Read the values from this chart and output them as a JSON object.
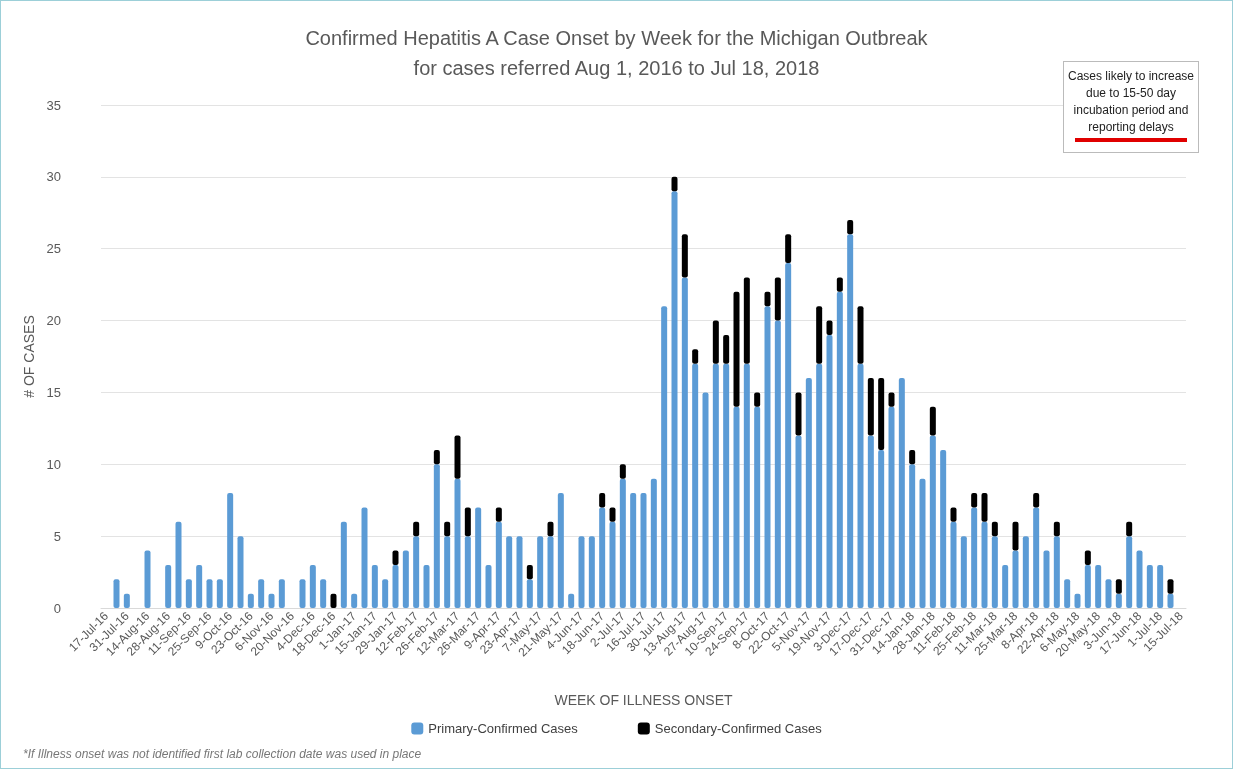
{
  "chart_data": {
    "type": "bar",
    "title": "Confirmed Hepatitis A Case Onset by Week for the Michigan Outbreak",
    "subtitle": "for cases referred Aug 1, 2016 to Jul 18, 2018",
    "xlabel": "WEEK OF ILLNESS ONSET",
    "ylabel": "# OF CASES",
    "annotations": [
      "Cases likely to increase due to 15-50 day incubation period and reporting delays",
      "*If Illness onset was not identified first lab collection date was used in place"
    ],
    "categories": [
      "17-Jul-16",
      null,
      "31-Jul-16",
      null,
      "14-Aug-16",
      null,
      "28-Aug-16",
      null,
      "11-Sep-16",
      null,
      "25-Sep-16",
      null,
      "9-Oct-16",
      null,
      "23-Oct-16",
      null,
      "6-Nov-16",
      null,
      "20-Nov-16",
      null,
      "4-Dec-16",
      null,
      "18-Dec-16",
      null,
      "1-Jan-17",
      null,
      "15-Jan-17",
      null,
      "29-Jan-17",
      null,
      "12-Feb-17",
      null,
      "26-Feb-17",
      null,
      "12-Mar-17",
      null,
      "26-Mar-17",
      null,
      "9-Apr-17",
      null,
      "23-Apr-17",
      null,
      "7-May-17",
      null,
      "21-May-17",
      null,
      "4-Jun-17",
      null,
      "18-Jun-17",
      null,
      "2-Jul-17",
      null,
      "16-Jul-17",
      null,
      "30-Jul-17",
      null,
      "13-Aug-17",
      null,
      "27-Aug-17",
      null,
      "10-Sep-17",
      null,
      "24-Sep-17",
      null,
      "8-Oct-17",
      null,
      "22-Oct-17",
      null,
      "5-Nov-17",
      null,
      "19-Nov-17",
      null,
      "3-Dec-17",
      null,
      "17-Dec-17",
      null,
      "31-Dec-17",
      null,
      "14-Jan-18",
      null,
      "28-Jan-18",
      null,
      "11-Feb-18",
      null,
      "25-Feb-18",
      null,
      "11-Mar-18",
      null,
      "25-Mar-18",
      null,
      "8-Apr-18",
      null,
      "22-Apr-18",
      null,
      "6-May-18",
      null,
      "20-May-18",
      null,
      "3-Jun-18",
      null,
      "17-Jun-18",
      null,
      "1-Jul-18",
      null,
      "15-Jul-18"
    ],
    "series": [
      {
        "name": "Primary-Confirmed Cases",
        "color": "#5b9bd5",
        "values": [
          0,
          2,
          1,
          0,
          4,
          0,
          3,
          6,
          2,
          3,
          2,
          2,
          8,
          5,
          1,
          2,
          1,
          2,
          0,
          2,
          3,
          2,
          0,
          6,
          1,
          7,
          3,
          2,
          3,
          4,
          5,
          3,
          10,
          5,
          9,
          5,
          7,
          3,
          6,
          5,
          5,
          2,
          5,
          5,
          8,
          1,
          5,
          5,
          7,
          6,
          9,
          8,
          8,
          9,
          21,
          29,
          23,
          17,
          15,
          17,
          17,
          14,
          17,
          14,
          21,
          20,
          24,
          12,
          16,
          17,
          19,
          22,
          26,
          17,
          12,
          11,
          14,
          16,
          10,
          9,
          12,
          11,
          6,
          5,
          7,
          6,
          5,
          3,
          4,
          5,
          7,
          4,
          5,
          2,
          1,
          3,
          3,
          2,
          1,
          5,
          4,
          3,
          3,
          1,
          0
        ]
      },
      {
        "name": "Secondary-Confirmed Cases",
        "color": "#000000",
        "values": [
          0,
          0,
          0,
          0,
          0,
          0,
          0,
          0,
          0,
          0,
          0,
          0,
          0,
          0,
          0,
          0,
          0,
          0,
          0,
          0,
          0,
          0,
          1,
          0,
          0,
          0,
          0,
          0,
          1,
          0,
          1,
          0,
          1,
          1,
          3,
          2,
          0,
          0,
          1,
          0,
          0,
          1,
          0,
          1,
          0,
          0,
          0,
          0,
          1,
          1,
          1,
          0,
          0,
          0,
          0,
          1,
          3,
          1,
          0,
          3,
          2,
          8,
          6,
          1,
          1,
          3,
          2,
          3,
          0,
          4,
          1,
          1,
          1,
          4,
          4,
          5,
          1,
          0,
          1,
          0,
          2,
          0,
          1,
          0,
          1,
          2,
          1,
          0,
          2,
          0,
          1,
          0,
          1,
          0,
          0,
          1,
          0,
          0,
          1,
          1,
          0,
          0,
          0,
          1,
          0
        ]
      }
    ],
    "stacked": true,
    "ylim": [
      0,
      35
    ],
    "yticks": [
      0,
      5,
      10,
      15,
      20,
      25,
      30,
      35
    ],
    "grid": "y",
    "legend": "bottom"
  }
}
